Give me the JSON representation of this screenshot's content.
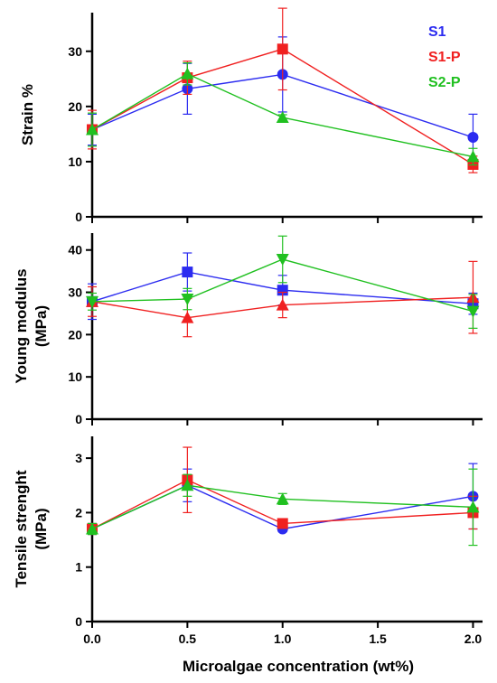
{
  "chart_data": [
    {
      "type": "line",
      "ylabel_lines": [
        "Strain %"
      ],
      "xlabel": "",
      "ylim": [
        0,
        37
      ],
      "yticks": [
        0,
        10,
        20,
        30
      ],
      "xlim": [
        0,
        2.05
      ],
      "xticks": [
        0.0,
        0.5,
        1.0,
        1.5,
        2.0
      ],
      "show_x_tick_labels": false,
      "legend": {
        "position": "top-right",
        "entries": [
          {
            "name": "S1",
            "color": "#2b2bf0"
          },
          {
            "name": "S1-P",
            "color": "#f02020"
          },
          {
            "name": "S2-P",
            "color": "#20c020"
          }
        ]
      },
      "series": [
        {
          "name": "S1",
          "color": "#2b2bf0",
          "marker": "circle",
          "x": [
            0,
            0.5,
            1.0,
            2.0
          ],
          "y": [
            15.8,
            23.2,
            25.8,
            14.4
          ],
          "err": [
            2.8,
            4.6,
            6.8,
            4.2
          ]
        },
        {
          "name": "S1-P",
          "color": "#f02020",
          "marker": "square",
          "x": [
            0,
            0.5,
            1.0,
            2.0
          ],
          "y": [
            15.8,
            25.2,
            30.4,
            9.5
          ],
          "err": [
            3.5,
            3.0,
            7.4,
            1.5
          ]
        },
        {
          "name": "S2-P",
          "color": "#20c020",
          "marker": "triangle-up",
          "x": [
            0,
            0.5,
            1.0,
            2.0
          ],
          "y": [
            15.8,
            25.9,
            18.0,
            10.9
          ],
          "err": [
            3.0,
            2.0,
            0.5,
            1.5
          ]
        }
      ]
    },
    {
      "type": "line",
      "ylabel_lines": [
        "Young modulus",
        "(MPa)"
      ],
      "xlabel": "",
      "ylim": [
        0,
        44
      ],
      "yticks": [
        0,
        10,
        20,
        30,
        40
      ],
      "xlim": [
        0,
        2.05
      ],
      "xticks": [
        0.0,
        0.5,
        1.0,
        1.5,
        2.0
      ],
      "show_x_tick_labels": false,
      "series": [
        {
          "name": "S1",
          "color": "#2b2bf0",
          "marker": "square",
          "x": [
            0,
            0.5,
            1.0,
            2.0
          ],
          "y": [
            27.8,
            34.8,
            30.5,
            27.3
          ],
          "err": [
            4.2,
            4.5,
            3.5,
            2.5
          ]
        },
        {
          "name": "S1-P",
          "color": "#f02020",
          "marker": "triangle-up",
          "x": [
            0,
            0.5,
            1.0,
            2.0
          ],
          "y": [
            27.8,
            24.0,
            27.0,
            28.8
          ],
          "err": [
            3.5,
            4.5,
            3.0,
            8.5
          ]
        },
        {
          "name": "S2-P",
          "color": "#20c020",
          "marker": "triangle-down",
          "x": [
            0,
            0.5,
            1.0,
            2.0
          ],
          "y": [
            27.8,
            28.4,
            37.8,
            25.5
          ],
          "err": [
            2.0,
            2.5,
            5.5,
            4.0
          ]
        }
      ]
    },
    {
      "type": "line",
      "ylabel_lines": [
        "Tensile strenght",
        "(MPa)"
      ],
      "xlabel": "Microalgae concentration (wt%)",
      "ylim": [
        0,
        3.4
      ],
      "yticks": [
        0,
        1,
        2,
        3
      ],
      "xlim": [
        0,
        2.05
      ],
      "xticks": [
        0.0,
        0.5,
        1.0,
        1.5,
        2.0
      ],
      "show_x_tick_labels": true,
      "series": [
        {
          "name": "S1",
          "color": "#2b2bf0",
          "marker": "circle",
          "x": [
            0,
            0.5,
            1.0,
            2.0
          ],
          "y": [
            1.7,
            2.5,
            1.7,
            2.3
          ],
          "err": [
            0.1,
            0.3,
            0.05,
            0.6
          ]
        },
        {
          "name": "S1-P",
          "color": "#f02020",
          "marker": "square",
          "x": [
            0,
            0.5,
            1.0,
            2.0
          ],
          "y": [
            1.7,
            2.6,
            1.8,
            2.0
          ],
          "err": [
            0.1,
            0.6,
            0.05,
            0.3
          ]
        },
        {
          "name": "S2-P",
          "color": "#20c020",
          "marker": "triangle-up",
          "x": [
            0,
            0.5,
            1.0,
            2.0
          ],
          "y": [
            1.7,
            2.5,
            2.25,
            2.1
          ],
          "err": [
            0.1,
            0.2,
            0.1,
            0.7
          ]
        }
      ]
    }
  ]
}
